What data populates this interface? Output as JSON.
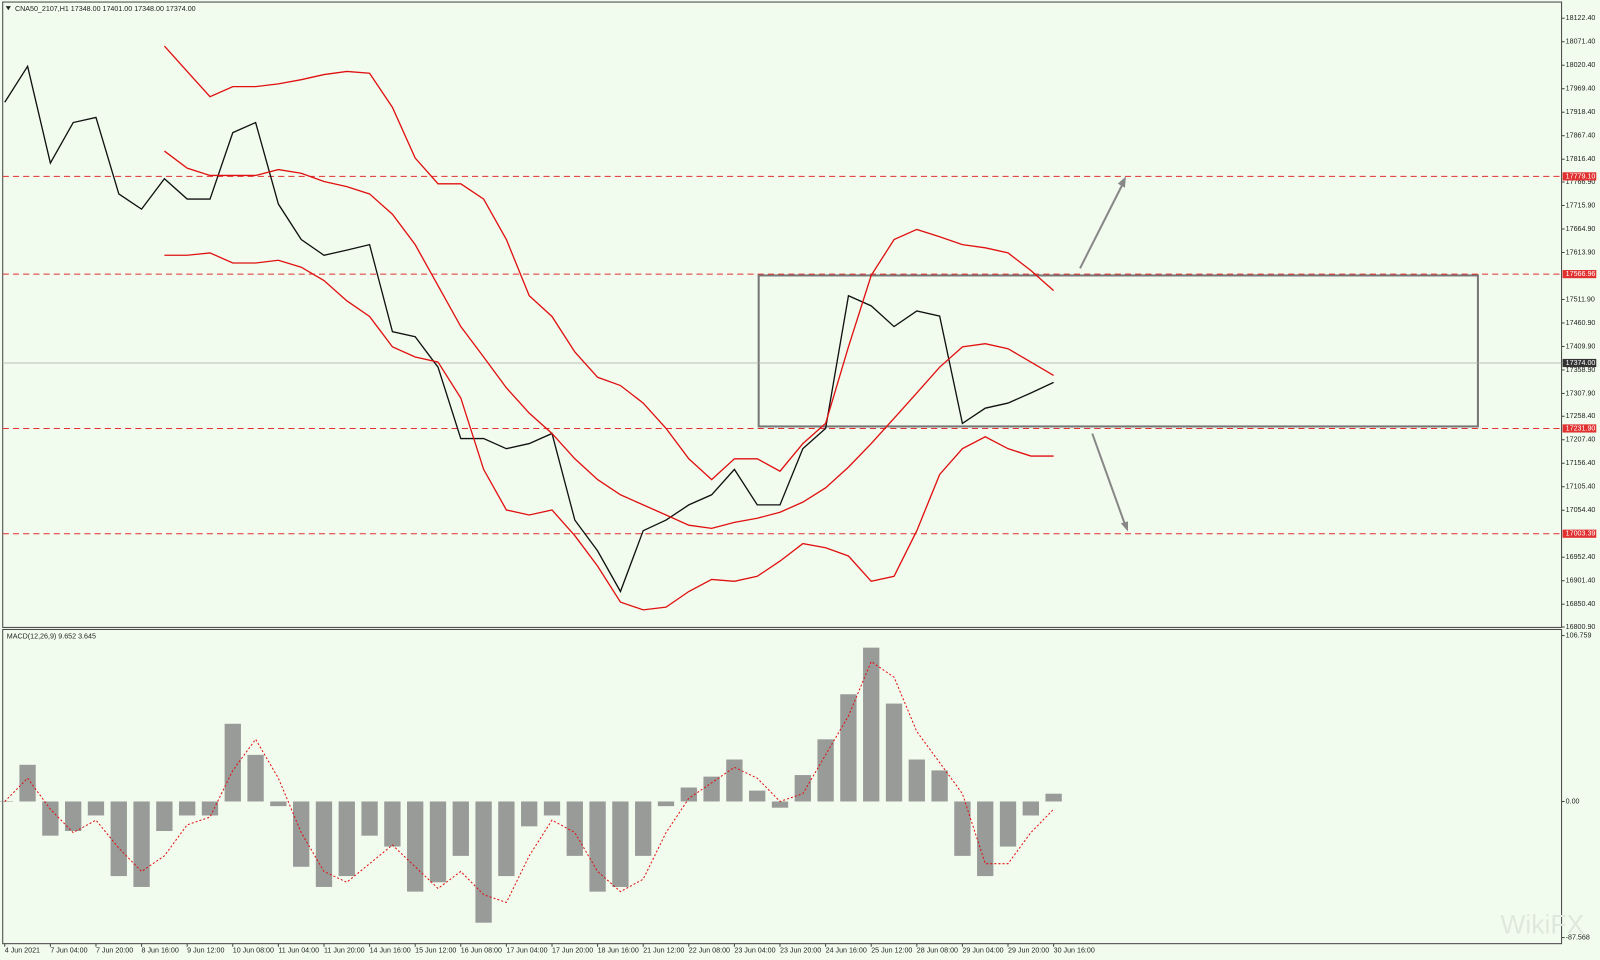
{
  "chart_data": [
    {
      "type": "line",
      "title": "CNA50_2107,H1  17348.00 17401.00 17348.00 17374.00",
      "categories": [
        "4 Jun 2021",
        null,
        "7 Jun 04:00",
        null,
        "7 Jun 20:00",
        null,
        "8 Jun 16:00",
        null,
        "9 Jun 12:00",
        null,
        "10 Jun 08:00",
        null,
        "11 Jun 04:00",
        null,
        "11 Jun 20:00",
        null,
        "14 Jun 16:00",
        null,
        "15 Jun 12:00",
        null,
        "16 Jun 08:00",
        null,
        "17 Jun 04:00",
        null,
        "17 Jun 20:00",
        null,
        "18 Jun 16:00",
        null,
        "21 Jun 12:00",
        null,
        "22 Jun 08:00",
        null,
        "23 Jun 04:00",
        null,
        "23 Jun 20:00",
        null,
        "24 Jun 16:00",
        null,
        "25 Jun 12:00",
        null,
        "28 Jun 08:00",
        null,
        "29 Jun 04:00",
        null,
        "29 Jun 20:00",
        null,
        "30 Jun 16:00"
      ],
      "series": [
        {
          "name": "Price",
          "color": "#111111",
          "values": [
            17940,
            18018,
            17808,
            17896,
            17907,
            17741,
            17708,
            17774,
            17730,
            17730,
            17874,
            17896,
            17719,
            17642,
            17608,
            17619,
            17631,
            17442,
            17431,
            17365,
            17210,
            17210,
            17188,
            17199,
            17221,
            17033,
            16966,
            16878,
            17010,
            17033,
            17066,
            17088,
            17143,
            17066,
            17066,
            17188,
            17232,
            17520,
            17498,
            17453,
            17487,
            17476,
            17243,
            17276,
            17287,
            17309,
            17332
          ]
        },
        {
          "name": "Upper band",
          "color": "#e01010",
          "values": [
            null,
            null,
            null,
            null,
            null,
            null,
            null,
            18062,
            18007,
            17952,
            17974,
            17974,
            17980,
            17989,
            18000,
            18007,
            18003,
            17929,
            17819,
            17763,
            17763,
            17730,
            17642,
            17520,
            17475,
            17398,
            17343,
            17325,
            17287,
            17232,
            17166,
            17121,
            17166,
            17166,
            17139,
            17199,
            17243,
            17409,
            17564,
            17642,
            17664,
            17648,
            17631,
            17624,
            17613,
            17575,
            17531
          ]
        },
        {
          "name": "Middle band",
          "color": "#e01010",
          "values": [
            null,
            null,
            null,
            null,
            null,
            null,
            null,
            17834,
            17797,
            17781,
            17781,
            17781,
            17794,
            17786,
            17768,
            17757,
            17741,
            17697,
            17631,
            17542,
            17453,
            17387,
            17320,
            17265,
            17221,
            17166,
            17121,
            17088,
            17066,
            17044,
            17022,
            17015,
            17028,
            17037,
            17050,
            17072,
            17103,
            17148,
            17199,
            17254,
            17309,
            17365,
            17409,
            17416,
            17405,
            17376,
            17347
          ]
        },
        {
          "name": "Lower band",
          "color": "#e01010",
          "values": [
            null,
            null,
            null,
            null,
            null,
            null,
            null,
            17608,
            17608,
            17613,
            17591,
            17591,
            17597,
            17582,
            17553,
            17509,
            17475,
            17409,
            17387,
            17376,
            17298,
            17143,
            17055,
            17044,
            17055,
            16999,
            16933,
            16855,
            16838,
            16844,
            16878,
            16904,
            16900,
            16911,
            16944,
            16982,
            16973,
            16955,
            16900,
            16911,
            17010,
            17132,
            17188,
            17214,
            17188,
            17172,
            17172
          ]
        }
      ],
      "ylim": [
        16800,
        18162
      ],
      "yticks": [
        {
          "value": 18122.4,
          "label": "18122.40"
        },
        {
          "value": 18071.4,
          "label": "18071.40"
        },
        {
          "value": 18020.4,
          "label": "18020.40"
        },
        {
          "value": 17969.4,
          "label": "17969.40"
        },
        {
          "value": 17918.4,
          "label": "17918.40"
        },
        {
          "value": 17867.4,
          "label": "17867.40"
        },
        {
          "value": 17816.4,
          "label": "17816.40"
        },
        {
          "value": 17766.9,
          "label": "17766.90"
        },
        {
          "value": 17715.9,
          "label": "17715.90"
        },
        {
          "value": 17664.9,
          "label": "17664.90"
        },
        {
          "value": 17613.9,
          "label": "17613.90"
        },
        {
          "value": 17511.9,
          "label": "17511.90"
        },
        {
          "value": 17460.9,
          "label": "17460.90"
        },
        {
          "value": 17409.9,
          "label": "17409.90"
        },
        {
          "value": 17358.9,
          "label": "17358.90"
        },
        {
          "value": 17307.9,
          "label": "17307.90"
        },
        {
          "value": 17258.4,
          "label": "17258.40"
        },
        {
          "value": 17207.4,
          "label": "17207.40"
        },
        {
          "value": 17156.4,
          "label": "17156.40"
        },
        {
          "value": 17105.4,
          "label": "17105.40"
        },
        {
          "value": 17054.4,
          "label": "17054.40"
        },
        {
          "value": 16952.4,
          "label": "16952.40"
        },
        {
          "value": 16901.4,
          "label": "16901.40"
        },
        {
          "value": 16850.4,
          "label": "16850.40"
        },
        {
          "value": 16800.9,
          "label": "16800.90"
        }
      ],
      "levels": [
        {
          "value": 17779.1,
          "label": "17779.10"
        },
        {
          "value": 17566.96,
          "label": "17566.96"
        },
        {
          "value": 17231.9,
          "label": "17231.90"
        },
        {
          "value": 17003.39,
          "label": "17003.39"
        }
      ],
      "level_color": "#e03030",
      "current_price": {
        "value": 17374,
        "label": "17374.00"
      }
    },
    {
      "type": "bar",
      "title": "MACD(12,26,9) 9.652 3.645",
      "series": [
        {
          "name": "MACD",
          "color": "#8a8a8a",
          "values": [
            0,
            23.6,
            -22,
            -19,
            -9,
            -48,
            -55,
            -19,
            -9,
            -9,
            50,
            30,
            -3,
            -42,
            -55,
            -48,
            -22,
            -29,
            -58,
            -52,
            -35,
            -78,
            -48,
            -16,
            -9,
            -35,
            -58,
            -55,
            -35,
            -3,
            9,
            16,
            27,
            7,
            -4,
            17,
            40,
            69,
            99,
            63,
            27,
            20,
            -35,
            -48,
            -29,
            -9,
            5
          ]
        },
        {
          "name": "Signal",
          "color": "#e01010",
          "values": [
            0,
            15,
            -5,
            -20,
            -12,
            -30,
            -45,
            -35,
            -15,
            -10,
            20,
            40,
            15,
            -20,
            -45,
            -52,
            -40,
            -28,
            -42,
            -56,
            -45,
            -60,
            -65,
            -35,
            -12,
            -20,
            -45,
            -58,
            -50,
            -20,
            2,
            12,
            22,
            15,
            0,
            5,
            30,
            55,
            90,
            80,
            45,
            25,
            5,
            -40,
            -40,
            -20,
            -5
          ]
        }
      ],
      "ylim": [
        -91.5,
        110.7
      ],
      "yticks": [
        {
          "value": 106.759,
          "label": "106.759"
        },
        {
          "value": 0,
          "label": "0.00"
        },
        {
          "value": -87.568,
          "label": "-87.568"
        }
      ]
    }
  ],
  "watermark": "WikiFX"
}
